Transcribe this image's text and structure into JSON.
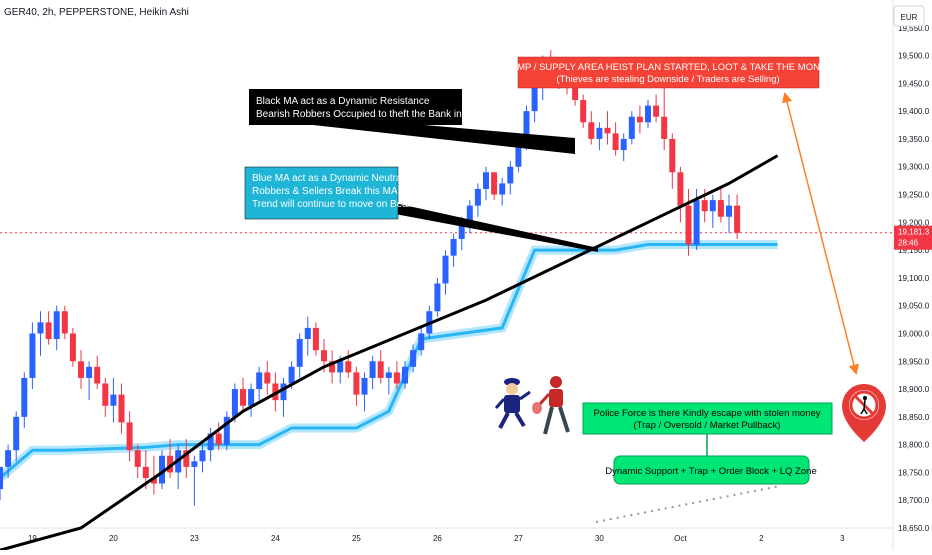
{
  "header": {
    "title": "GER40, 2h, PEPPERSTONE, Heikin Ashi"
  },
  "currency_button": "EUR",
  "price_badge": {
    "price": "19,181.3",
    "countdown": "28:46"
  },
  "annotations": {
    "black_ma": [
      "Black MA act as a Dynamic Resistance",
      "Bearish Robbers Occupied to theft the Bank in sell side"
    ],
    "blue_ma": [
      "Blue MA act as a Dynamic Neutral Level",
      "Robbers & Sellers Break this MA",
      "Trend will continue to move on Bearish"
    ],
    "dump_area": [
      "DUMP / SUPPLY AREA HEIST PLAN STARTED, LOOT & TAKE THE MONEY",
      "(Thieves are stealing Downside / Traders are Selling)"
    ],
    "police": [
      "Police Force is there Kindly escape with stolen money",
      "(Trap / Oversold / Market Pullback)"
    ],
    "support": "Dynamic Support + Trap + Order Block + LQ Zone"
  },
  "colors": {
    "up": "#2962ff",
    "down": "#f23645",
    "ma_black": "#000000",
    "ma_blue": "#29b6f6",
    "dump_box": "#f44336",
    "green_box": "#00e676",
    "callout_black": "#000000",
    "callout_blue": "#1eb5d6",
    "arrow": "#ff7f27",
    "last_price": "#f23645"
  },
  "icons": [
    "police-officer-icon",
    "robber-icon",
    "no-entry-sign-icon"
  ],
  "chart_data": {
    "type": "candlestick",
    "title": "GER40, 2h, PEPPERSTONE, Heikin Ashi",
    "y_axis": {
      "min": 18650,
      "max": 19600,
      "ticks": [
        "19,550.0",
        "19,500.0",
        "19,450.0",
        "19,400.0",
        "19,350.0",
        "19,300.0",
        "19,250.0",
        "19,200.0",
        "19,150.0",
        "19,100.0",
        "19,050.0",
        "19,000.0",
        "18,950.0",
        "18,900.0",
        "18,850.0",
        "18,800.0",
        "18,750.0",
        "18,700.0",
        "18,650.0"
      ],
      "tick_values": [
        19550,
        19500,
        19450,
        19400,
        19350,
        19300,
        19250,
        19200,
        19150,
        19100,
        19050,
        19000,
        18950,
        18900,
        18850,
        18800,
        18750,
        18700,
        18650
      ]
    },
    "x_axis": {
      "labels": [
        "19",
        "20",
        "23",
        "24",
        "25",
        "26",
        "27",
        "30",
        "Oct",
        "2",
        "3"
      ],
      "label_bar_index": [
        4,
        14,
        24,
        34,
        44,
        54,
        64,
        74,
        84,
        94,
        104
      ]
    },
    "last_price": 19181.3,
    "candles": [
      [
        18720,
        18760,
        18700,
        18760
      ],
      [
        18760,
        18800,
        18740,
        18790
      ],
      [
        18790,
        18860,
        18770,
        18850
      ],
      [
        18850,
        18930,
        18830,
        18920
      ],
      [
        18920,
        19020,
        18900,
        19000
      ],
      [
        19000,
        19040,
        18960,
        19020
      ],
      [
        19020,
        19040,
        18980,
        18990
      ],
      [
        18990,
        19050,
        18970,
        19040
      ],
      [
        19040,
        19050,
        18990,
        19000
      ],
      [
        19000,
        19010,
        18940,
        18950
      ],
      [
        18950,
        18970,
        18900,
        18920
      ],
      [
        18920,
        18950,
        18880,
        18940
      ],
      [
        18940,
        18960,
        18900,
        18910
      ],
      [
        18910,
        18920,
        18850,
        18870
      ],
      [
        18870,
        18920,
        18840,
        18890
      ],
      [
        18890,
        18910,
        18820,
        18840
      ],
      [
        18840,
        18860,
        18770,
        18790
      ],
      [
        18790,
        18800,
        18740,
        18760
      ],
      [
        18760,
        18790,
        18720,
        18740
      ],
      [
        18740,
        18780,
        18710,
        18730
      ],
      [
        18730,
        18790,
        18720,
        18780
      ],
      [
        18780,
        18810,
        18740,
        18750
      ],
      [
        18750,
        18800,
        18720,
        18790
      ],
      [
        18790,
        18810,
        18740,
        18760
      ],
      [
        18760,
        18780,
        18690,
        18770
      ],
      [
        18770,
        18800,
        18750,
        18790
      ],
      [
        18790,
        18830,
        18770,
        18820
      ],
      [
        18820,
        18840,
        18790,
        18800
      ],
      [
        18800,
        18860,
        18790,
        18850
      ],
      [
        18850,
        18910,
        18840,
        18900
      ],
      [
        18900,
        18920,
        18860,
        18870
      ],
      [
        18870,
        18910,
        18850,
        18900
      ],
      [
        18900,
        18940,
        18880,
        18930
      ],
      [
        18930,
        18950,
        18890,
        18910
      ],
      [
        18910,
        18930,
        18860,
        18880
      ],
      [
        18880,
        18920,
        18850,
        18910
      ],
      [
        18910,
        18950,
        18900,
        18940
      ],
      [
        18940,
        19000,
        18920,
        18990
      ],
      [
        18990,
        19030,
        18960,
        19010
      ],
      [
        19010,
        19020,
        18960,
        18970
      ],
      [
        18970,
        18990,
        18930,
        18950
      ],
      [
        18950,
        18970,
        18910,
        18930
      ],
      [
        18930,
        18960,
        18910,
        18950
      ],
      [
        18950,
        18970,
        18920,
        18930
      ],
      [
        18930,
        18940,
        18870,
        18890
      ],
      [
        18890,
        18930,
        18860,
        18920
      ],
      [
        18920,
        18960,
        18900,
        18950
      ],
      [
        18950,
        18970,
        18910,
        18920
      ],
      [
        18920,
        18940,
        18890,
        18930
      ],
      [
        18930,
        18950,
        18900,
        18910
      ],
      [
        18910,
        18950,
        18900,
        18940
      ],
      [
        18940,
        18980,
        18930,
        18970
      ],
      [
        18970,
        19010,
        18960,
        19000
      ],
      [
        19000,
        19050,
        18990,
        19040
      ],
      [
        19040,
        19100,
        19030,
        19090
      ],
      [
        19090,
        19150,
        19070,
        19140
      ],
      [
        19140,
        19180,
        19120,
        19170
      ],
      [
        19170,
        19210,
        19150,
        19200
      ],
      [
        19200,
        19240,
        19180,
        19230
      ],
      [
        19230,
        19270,
        19210,
        19260
      ],
      [
        19260,
        19300,
        19240,
        19290
      ],
      [
        19290,
        19290,
        19240,
        19250
      ],
      [
        19250,
        19280,
        19230,
        19270
      ],
      [
        19270,
        19310,
        19250,
        19300
      ],
      [
        19300,
        19360,
        19290,
        19350
      ],
      [
        19350,
        19410,
        19330,
        19400
      ],
      [
        19400,
        19460,
        19380,
        19450
      ],
      [
        19450,
        19500,
        19420,
        19480
      ],
      [
        19480,
        19510,
        19450,
        19470
      ],
      [
        19470,
        19490,
        19440,
        19460
      ],
      [
        19460,
        19480,
        19430,
        19450
      ],
      [
        19450,
        19470,
        19410,
        19420
      ],
      [
        19420,
        19430,
        19370,
        19380
      ],
      [
        19380,
        19400,
        19340,
        19350
      ],
      [
        19350,
        19380,
        19330,
        19370
      ],
      [
        19370,
        19400,
        19340,
        19360
      ],
      [
        19360,
        19380,
        19320,
        19330
      ],
      [
        19330,
        19360,
        19310,
        19350
      ],
      [
        19350,
        19400,
        19340,
        19390
      ],
      [
        19390,
        19410,
        19360,
        19380
      ],
      [
        19380,
        19420,
        19370,
        19410
      ],
      [
        19410,
        19430,
        19380,
        19390
      ],
      [
        19390,
        19460,
        19330,
        19350
      ],
      [
        19350,
        19360,
        19260,
        19290
      ],
      [
        19290,
        19300,
        19200,
        19230
      ],
      [
        19230,
        19260,
        19140,
        19160
      ],
      [
        19160,
        19260,
        19150,
        19240
      ],
      [
        19240,
        19260,
        19200,
        19220
      ],
      [
        19220,
        19250,
        19190,
        19240
      ],
      [
        19240,
        19260,
        19200,
        19210
      ],
      [
        19210,
        19250,
        19180,
        19230
      ],
      [
        19230,
        19250,
        19170,
        19181
      ]
    ],
    "ma_black": {
      "name": "Black MA",
      "x": [
        0,
        10,
        20,
        30,
        40,
        50,
        60,
        70,
        80,
        90,
        96
      ],
      "values": [
        18610,
        18650,
        18750,
        18860,
        18940,
        19000,
        19060,
        19130,
        19200,
        19270,
        19320
      ]
    },
    "ma_blue": {
      "name": "Blue MA",
      "x": [
        0,
        4,
        8,
        18,
        22,
        32,
        36,
        44,
        48,
        52,
        62,
        66,
        76,
        80,
        92,
        96
      ],
      "values": [
        18740,
        18790,
        18790,
        18795,
        18800,
        18800,
        18830,
        18830,
        18860,
        18990,
        19010,
        19150,
        19150,
        19160,
        19160,
        19160
      ]
    }
  }
}
